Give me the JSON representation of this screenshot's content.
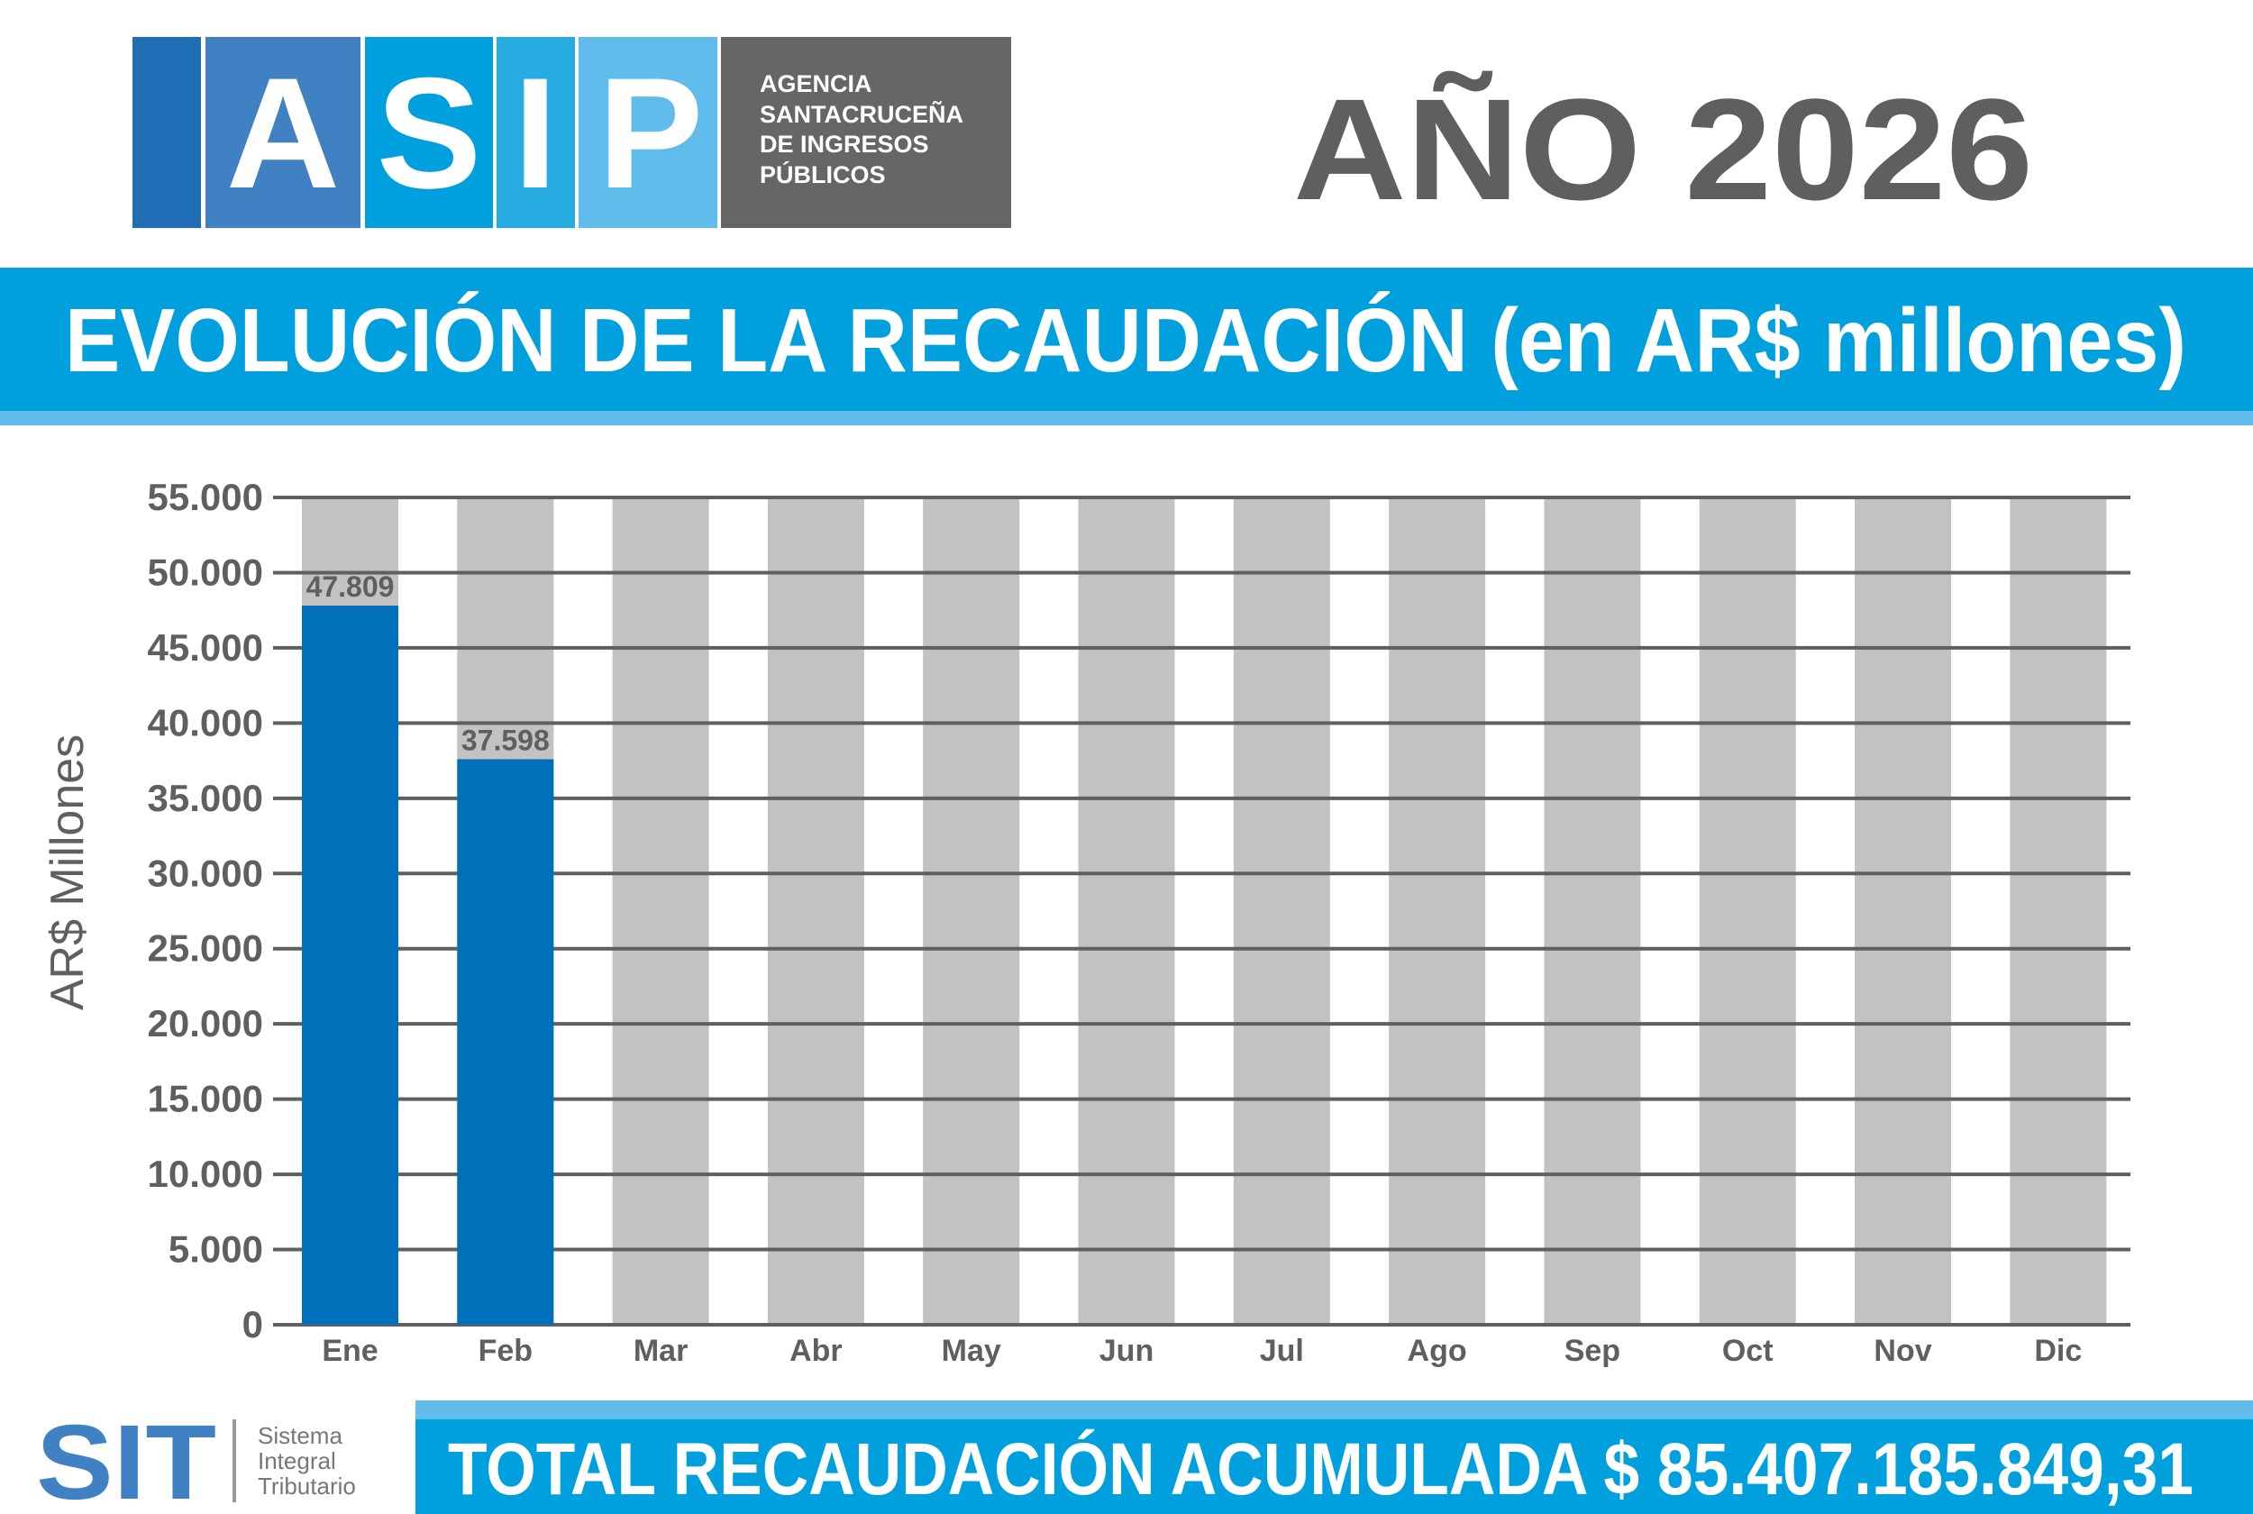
{
  "logo": {
    "letters": [
      "A",
      "S",
      "I",
      "P"
    ],
    "agency_lines": [
      "AGENCIA",
      "SANTACRUCEÑA",
      "DE INGRESOS",
      "PÚBLICOS"
    ]
  },
  "year_label": "AÑO 2026",
  "banner_title": "EVOLUCIÓN DE LA RECAUDACIÓN (en AR$ millones)",
  "footer": {
    "sit_logo": "SIT",
    "sit_lines": [
      "Sistema",
      "Integral",
      "Tributario"
    ],
    "total_label": "TOTAL RECAUDACIÓN ACUMULADA $ 85.407.185.849,31"
  },
  "colors": {
    "bar": "#0070BA",
    "bar_background": "#C2C2C2",
    "banner": "#009FDE",
    "banner_stripe": "#5FBCEB",
    "text_gray": "#5F5F5F"
  },
  "chart_data": {
    "type": "bar",
    "ylabel": "AR$ Millones",
    "xlabel": "",
    "ylim": [
      0,
      55000
    ],
    "yticks": [
      "0",
      "5.000",
      "10.000",
      "15.000",
      "20.000",
      "25.000",
      "30.000",
      "35.000",
      "40.000",
      "45.000",
      "50.000",
      "55.000"
    ],
    "grid": true,
    "categories": [
      "Ene",
      "Feb",
      "Mar",
      "Abr",
      "May",
      "Jun",
      "Jul",
      "Ago",
      "Sep",
      "Oct",
      "Nov",
      "Dic"
    ],
    "values": [
      47809,
      37598,
      null,
      null,
      null,
      null,
      null,
      null,
      null,
      null,
      null,
      null
    ],
    "data_labels": [
      "47.809",
      "37.598",
      "",
      "",
      "",
      "",
      "",
      "",
      "",
      "",
      "",
      ""
    ]
  }
}
